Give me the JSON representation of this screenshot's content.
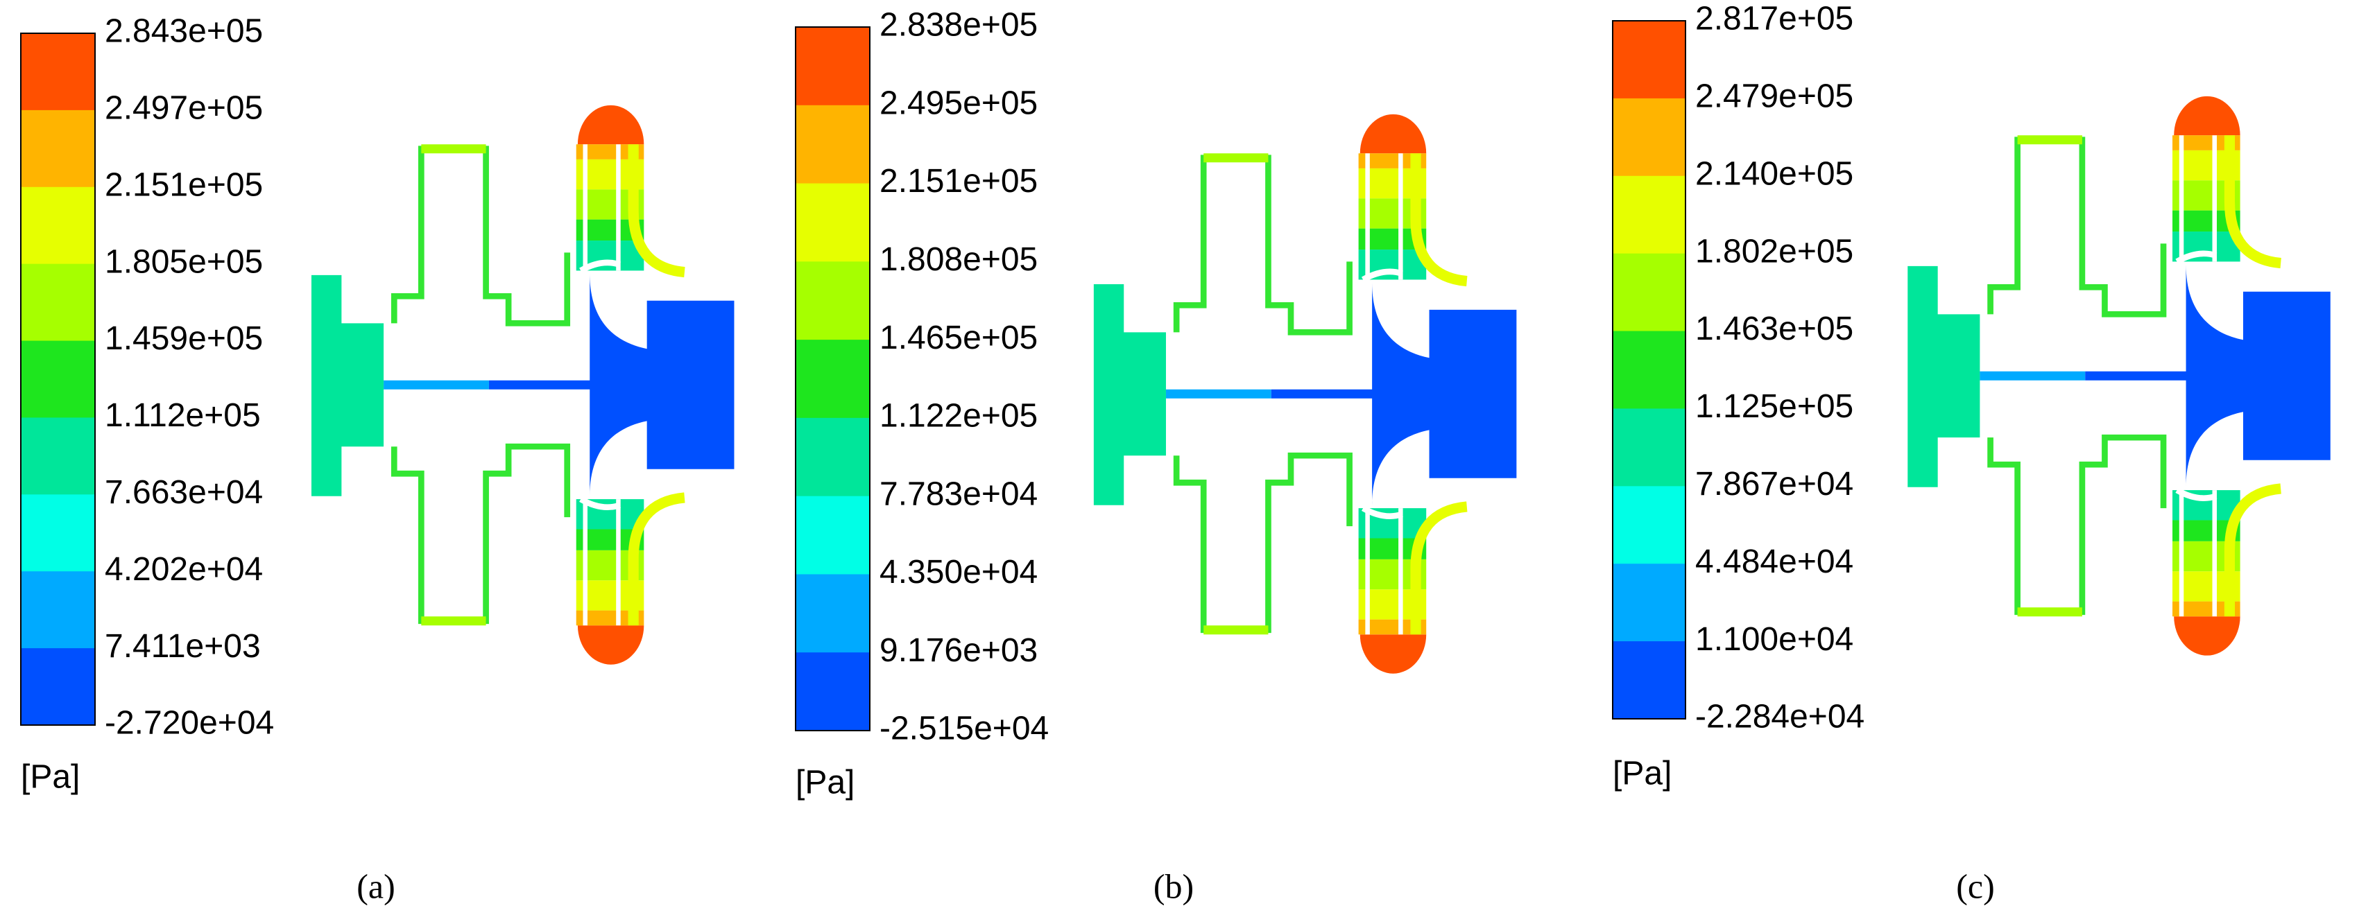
{
  "colormap": [
    "#ff5000",
    "#ffb400",
    "#e6ff00",
    "#a6ff00",
    "#1ee61e",
    "#00e69a",
    "#00ffe6",
    "#00aaff",
    "#0050ff"
  ],
  "panels": [
    {
      "caption": "(a)",
      "unit": "[Pa]",
      "colorbar_labels": [
        "2.843e+05",
        "2.497e+05",
        "2.151e+05",
        "1.805e+05",
        "1.459e+05",
        "1.112e+05",
        "7.663e+04",
        "4.202e+04",
        "7.411e+03",
        "-2.720e+04"
      ]
    },
    {
      "caption": "(b)",
      "unit": "[Pa]",
      "colorbar_labels": [
        "2.838e+05",
        "2.495e+05",
        "2.151e+05",
        "1.808e+05",
        "1.465e+05",
        "1.122e+05",
        "7.783e+04",
        "4.350e+04",
        "9.176e+03",
        "-2.515e+04"
      ]
    },
    {
      "caption": "(c)",
      "unit": "[Pa]",
      "colorbar_labels": [
        "2.817e+05",
        "2.479e+05",
        "2.140e+05",
        "1.802e+05",
        "1.463e+05",
        "1.125e+05",
        "7.867e+04",
        "4.484e+04",
        "1.100e+04",
        "-2.284e+04"
      ]
    }
  ]
}
